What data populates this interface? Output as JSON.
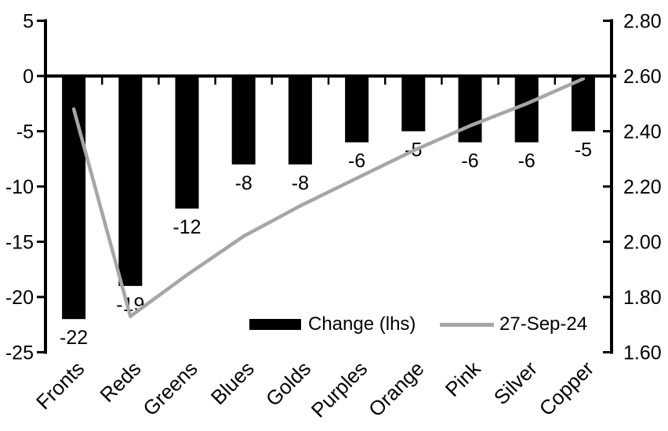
{
  "chart_data": {
    "type": "combo-bar-line",
    "title": "",
    "background_color": "#ffffff",
    "axis_color": "#000000",
    "grid": false,
    "legend_position": "inside-bottom",
    "categories": [
      "Fronts",
      "Reds",
      "Greens",
      "Blues",
      "Golds",
      "Purples",
      "Orange",
      "Pink",
      "Silver",
      "Copper"
    ],
    "series": [
      {
        "name": "Change (lhs)",
        "type": "bar",
        "axis": "left",
        "color": "#000000",
        "values": [
          -22,
          -19,
          -12,
          -8,
          -8,
          -6,
          -5,
          -6,
          -6,
          -5
        ],
        "data_labels": [
          "-22",
          "-19",
          "-12",
          "-8",
          "-8",
          "-6",
          "-5",
          "-6",
          "-6",
          "-5"
        ]
      },
      {
        "name": "27-Sep-24",
        "type": "line",
        "axis": "right",
        "color": "#a6a6a6",
        "values": [
          2.48,
          1.73,
          1.88,
          2.02,
          2.13,
          2.23,
          2.33,
          2.42,
          2.5,
          2.59
        ]
      }
    ],
    "left_axis": {
      "min": -25,
      "max": 5,
      "tick_values": [
        5,
        0,
        -5,
        -10,
        -15,
        -20,
        -25
      ],
      "tick_labels": [
        "5",
        "0",
        "-5",
        "-10",
        "-15",
        "-20",
        "-25"
      ]
    },
    "right_axis": {
      "min": 1.6,
      "max": 2.8,
      "tick_values": [
        2.8,
        2.6,
        2.4,
        2.2,
        2.0,
        1.8,
        1.6
      ],
      "tick_labels": [
        "2.80",
        "2.60",
        "2.40",
        "2.20",
        "2.00",
        "1.80",
        "1.60"
      ]
    },
    "legend": {
      "items": [
        {
          "label": "Change (lhs)",
          "swatch": "bar",
          "color": "#000000"
        },
        {
          "label": "27-Sep-24",
          "swatch": "line",
          "color": "#a6a6a6"
        }
      ]
    }
  }
}
